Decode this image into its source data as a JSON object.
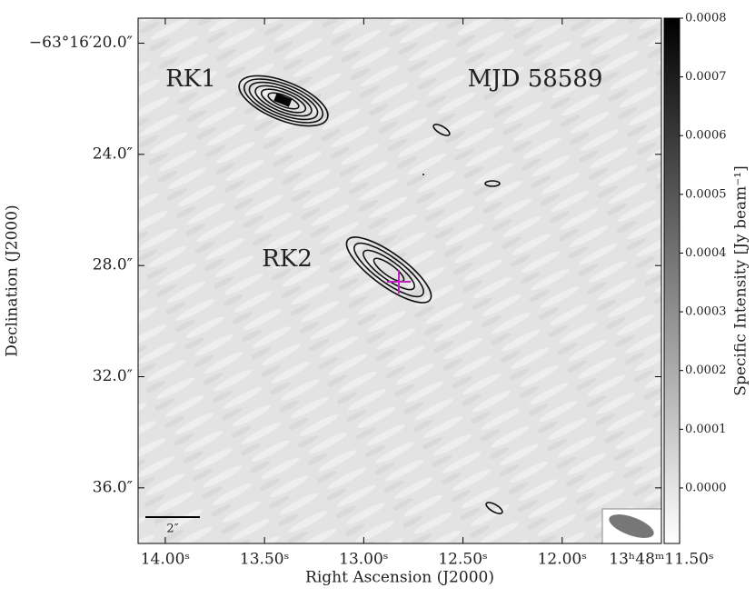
{
  "chart_data": {
    "type": "image",
    "x_label": "Right Ascension (J2000)",
    "y_label": "Declination (J2000)",
    "colorbar_label": "Specific Intensity [Jy beam⁻¹]",
    "annotations": [
      "RK1",
      "RK2",
      "MJD 58589"
    ],
    "scale_bar_label": "2″",
    "xlim": [
      14.137,
      11.5
    ],
    "xticks": [
      {
        "value": 14.0,
        "label": "14.00ˢ"
      },
      {
        "value": 13.5,
        "label": "13.50ˢ"
      },
      {
        "value": 13.0,
        "label": "13.00ˢ"
      },
      {
        "value": 12.5,
        "label": "12.50ˢ"
      },
      {
        "value": 12.0,
        "label": "12.00ˢ"
      },
      {
        "value": 11.5,
        "label": "13ʰ48ᵐ11.50ˢ"
      }
    ],
    "ylim": [
      38.0,
      19.1
    ],
    "yticks": [
      {
        "value": 20,
        "label": "−63°16′20.0″"
      },
      {
        "value": 24,
        "label": "24.0″"
      },
      {
        "value": 28,
        "label": "28.0″"
      },
      {
        "value": 32,
        "label": "32.0″"
      },
      {
        "value": 36,
        "label": "36.0″"
      }
    ],
    "clim": [
      -9.45e-05,
      0.0008
    ],
    "cticks": [
      {
        "value": 0,
        "label": "0.0000"
      },
      {
        "value": 0.0001,
        "label": "0.0001"
      },
      {
        "value": 0.0002,
        "label": "0.0002"
      },
      {
        "value": 0.0003,
        "label": "0.0003"
      },
      {
        "value": 0.0004,
        "label": "0.0004"
      },
      {
        "value": 0.0005,
        "label": "0.0005"
      },
      {
        "value": 0.0006,
        "label": "0.0006"
      },
      {
        "value": 0.0007,
        "label": "0.0007"
      },
      {
        "value": 0.0008,
        "label": "0.0008"
      }
    ]
  }
}
